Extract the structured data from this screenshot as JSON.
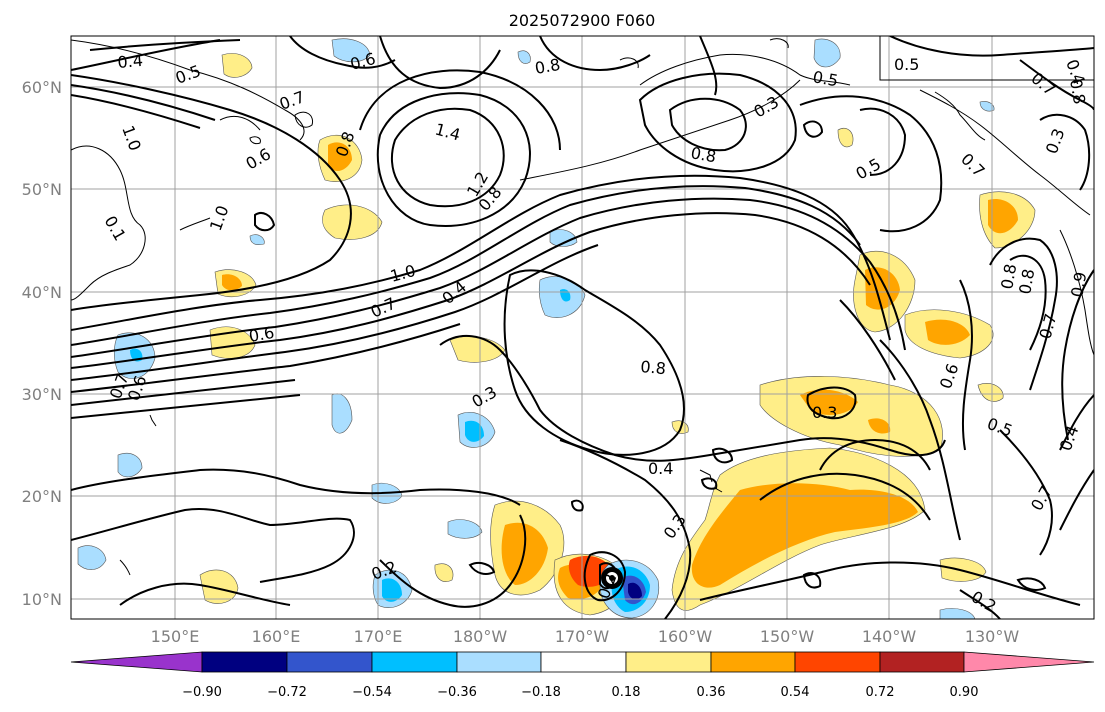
{
  "title": "2025072900 F060",
  "map": {
    "lat_labels": [
      "10°N",
      "20°N",
      "30°N",
      "40°N",
      "50°N",
      "60°N"
    ],
    "lon_labels": [
      "150°E",
      "160°E",
      "170°E",
      "180°W",
      "170°W",
      "160°W",
      "150°W",
      "140°W",
      "130°W"
    ],
    "gridline_color": "#a0a0a0",
    "coastline_color": "#000000"
  },
  "contour_labels": [
    "0.4",
    "0.5",
    "0.6",
    "0.8",
    "0.7",
    "1.0",
    "0.6",
    "0.8",
    "1.4",
    "1.2",
    "0.8",
    "1.0",
    "0.6",
    "0.7",
    "0.1",
    "1.0",
    "0.4",
    "0.7",
    "0.6",
    "0.8",
    "0.3",
    "0.4",
    "0.3",
    "0.2",
    "0.2",
    "0.3",
    "0.3",
    "0.8",
    "0.5",
    "0.5",
    "0.5",
    "0.7",
    "0.4",
    "0.3",
    "0.6",
    "0.7",
    "0.5",
    "0.8",
    "0.8",
    "0.7",
    "0.4",
    "0.9",
    "0.8",
    "0.7",
    "0.2"
  ],
  "colorbar": {
    "ticks": [
      "−0.90",
      "−0.72",
      "−0.54",
      "−0.36",
      "−0.18",
      "0.18",
      "0.36",
      "0.54",
      "0.72",
      "0.90"
    ],
    "colors": [
      "#9933cc",
      "#000080",
      "#3355cc",
      "#00bfff",
      "#aadeff",
      "#ffffff",
      "#ffee88",
      "#ffa500",
      "#ff4500",
      "#b22222",
      "#ff88aa"
    ]
  },
  "fill_colors": {
    "light_yellow": "#ffee88",
    "orange": "#ffa500",
    "red_orange": "#ff4500",
    "light_blue": "#aadeff",
    "deep_sky": "#00bfff",
    "royal": "#3355cc",
    "navy": "#000080"
  }
}
